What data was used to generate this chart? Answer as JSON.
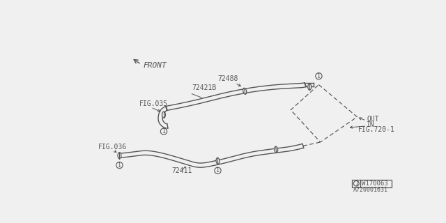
{
  "bg_color": "#f0f0f0",
  "line_color": "#666666",
  "labels": {
    "front": "FRONT",
    "fig035": "FIG.035",
    "fig036": "FIG.036",
    "part_72488": "72488",
    "part_72421B": "72421B",
    "part_72411": "72411",
    "out": "OUT",
    "in_label": "IN",
    "fig720": "FIG.720-1",
    "w170063": "W170063",
    "a720001631": "A720001631"
  },
  "font_size": 7,
  "diagram_color": "#555555",
  "hose_lw": 2.0,
  "clamp_color": "#555555"
}
